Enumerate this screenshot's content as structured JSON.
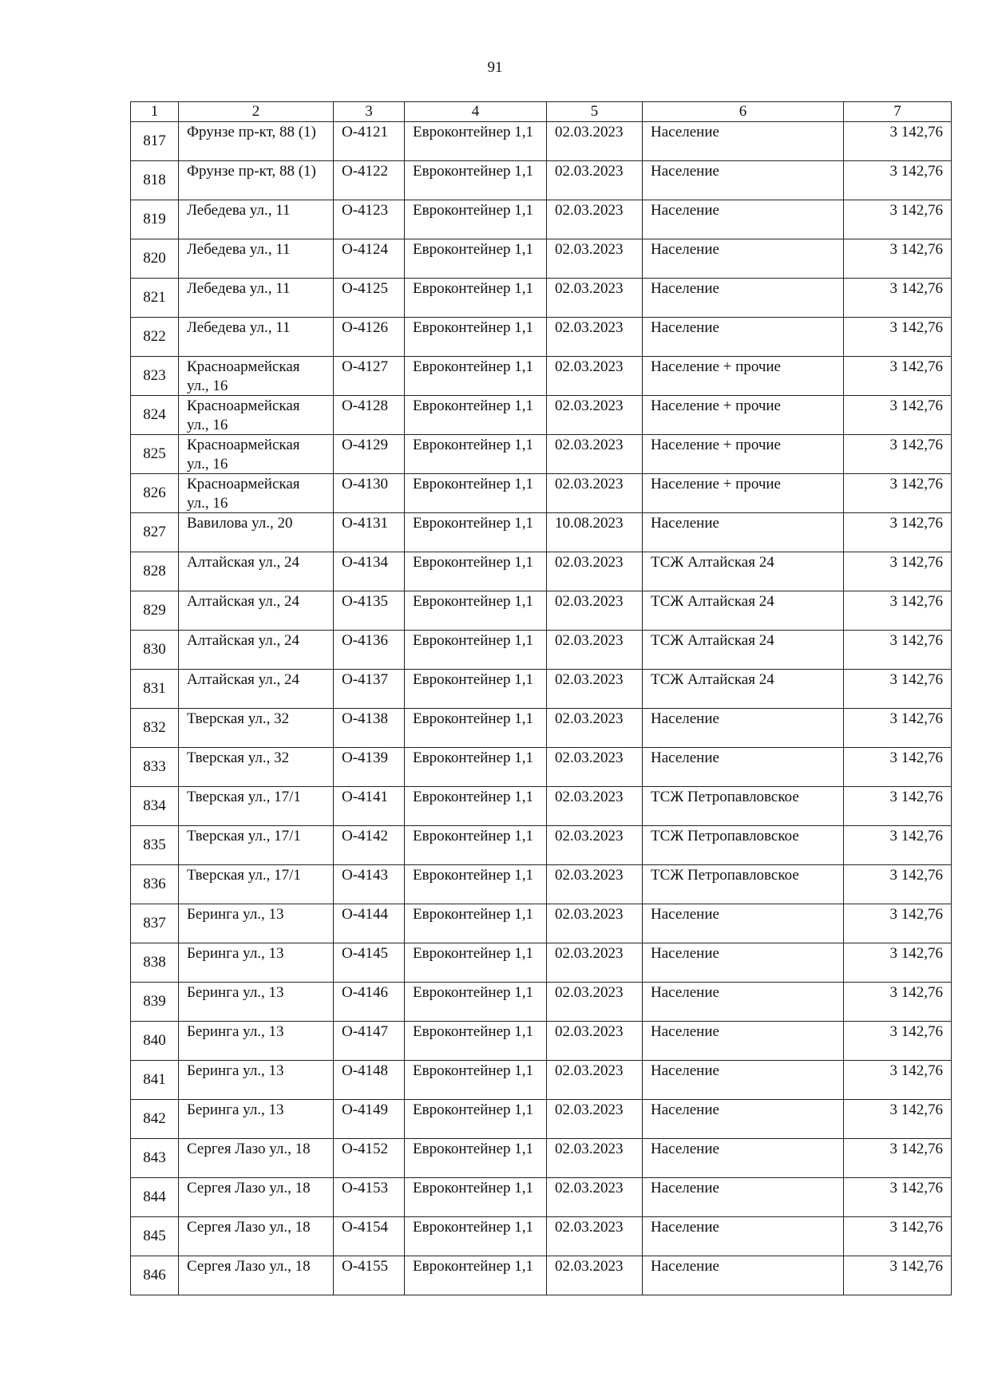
{
  "page_number": "91",
  "headers": [
    "1",
    "2",
    "3",
    "4",
    "5",
    "6",
    "7"
  ],
  "rows": [
    [
      "817",
      "Фрунзе пр-кт, 88 (1)",
      "О-4121",
      "Евроконтейнер 1,1",
      "02.03.2023",
      "Население",
      "3 142,76"
    ],
    [
      "818",
      "Фрунзе пр-кт, 88 (1)",
      "О-4122",
      "Евроконтейнер 1,1",
      "02.03.2023",
      "Население",
      "3 142,76"
    ],
    [
      "819",
      "Лебедева ул., 11",
      "О-4123",
      "Евроконтейнер 1,1",
      "02.03.2023",
      "Население",
      "3 142,76"
    ],
    [
      "820",
      "Лебедева ул., 11",
      "О-4124",
      "Евроконтейнер 1,1",
      "02.03.2023",
      "Население",
      "3 142,76"
    ],
    [
      "821",
      "Лебедева ул., 11",
      "О-4125",
      "Евроконтейнер 1,1",
      "02.03.2023",
      "Население",
      "3 142,76"
    ],
    [
      "822",
      "Лебедева ул., 11",
      "О-4126",
      "Евроконтейнер 1,1",
      "02.03.2023",
      "Население",
      "3 142,76"
    ],
    [
      "823",
      "Красноармейская ул., 16",
      "О-4127",
      "Евроконтейнер 1,1",
      "02.03.2023",
      "Население + прочие",
      "3 142,76"
    ],
    [
      "824",
      "Красноармейская ул., 16",
      "О-4128",
      "Евроконтейнер 1,1",
      "02.03.2023",
      "Население + прочие",
      "3 142,76"
    ],
    [
      "825",
      "Красноармейская ул., 16",
      "О-4129",
      "Евроконтейнер 1,1",
      "02.03.2023",
      "Население + прочие",
      "3 142,76"
    ],
    [
      "826",
      "Красноармейская ул., 16",
      "О-4130",
      "Евроконтейнер 1,1",
      "02.03.2023",
      "Население + прочие",
      "3 142,76"
    ],
    [
      "827",
      "Вавилова ул., 20",
      "О-4131",
      "Евроконтейнер 1,1",
      "10.08.2023",
      "Население",
      "3 142,76"
    ],
    [
      "828",
      "Алтайская ул., 24",
      "О-4134",
      "Евроконтейнер 1,1",
      "02.03.2023",
      "ТСЖ Алтайская 24",
      "3 142,76"
    ],
    [
      "829",
      "Алтайская ул., 24",
      "О-4135",
      "Евроконтейнер 1,1",
      "02.03.2023",
      "ТСЖ Алтайская 24",
      "3 142,76"
    ],
    [
      "830",
      "Алтайская ул., 24",
      "О-4136",
      "Евроконтейнер 1,1",
      "02.03.2023",
      "ТСЖ Алтайская 24",
      "3 142,76"
    ],
    [
      "831",
      "Алтайская ул., 24",
      "О-4137",
      "Евроконтейнер 1,1",
      "02.03.2023",
      "ТСЖ Алтайская 24",
      "3 142,76"
    ],
    [
      "832",
      "Тверская ул., 32",
      "О-4138",
      "Евроконтейнер 1,1",
      "02.03.2023",
      "Население",
      "3 142,76"
    ],
    [
      "833",
      "Тверская ул., 32",
      "О-4139",
      "Евроконтейнер 1,1",
      "02.03.2023",
      "Население",
      "3 142,76"
    ],
    [
      "834",
      "Тверская ул., 17/1",
      "О-4141",
      "Евроконтейнер 1,1",
      "02.03.2023",
      "ТСЖ Петропавловское",
      "3 142,76"
    ],
    [
      "835",
      "Тверская ул., 17/1",
      "О-4142",
      "Евроконтейнер 1,1",
      "02.03.2023",
      "ТСЖ Петропавловское",
      "3 142,76"
    ],
    [
      "836",
      "Тверская ул., 17/1",
      "О-4143",
      "Евроконтейнер 1,1",
      "02.03.2023",
      "ТСЖ Петропавловское",
      "3 142,76"
    ],
    [
      "837",
      "Беринга ул., 13",
      "О-4144",
      "Евроконтейнер 1,1",
      "02.03.2023",
      "Население",
      "3 142,76"
    ],
    [
      "838",
      "Беринга ул., 13",
      "О-4145",
      "Евроконтейнер 1,1",
      "02.03.2023",
      "Население",
      "3 142,76"
    ],
    [
      "839",
      "Беринга ул., 13",
      "О-4146",
      "Евроконтейнер 1,1",
      "02.03.2023",
      "Население",
      "3 142,76"
    ],
    [
      "840",
      "Беринга ул., 13",
      "О-4147",
      "Евроконтейнер 1,1",
      "02.03.2023",
      "Население",
      "3 142,76"
    ],
    [
      "841",
      "Беринга ул., 13",
      "О-4148",
      "Евроконтейнер 1,1",
      "02.03.2023",
      "Население",
      "3 142,76"
    ],
    [
      "842",
      "Беринга ул., 13",
      "О-4149",
      "Евроконтейнер 1,1",
      "02.03.2023",
      "Население",
      "3 142,76"
    ],
    [
      "843",
      "Сергея Лазо ул., 18",
      "О-4152",
      "Евроконтейнер 1,1",
      "02.03.2023",
      "Население",
      "3 142,76"
    ],
    [
      "844",
      "Сергея Лазо ул., 18",
      "О-4153",
      "Евроконтейнер 1,1",
      "02.03.2023",
      "Население",
      "3 142,76"
    ],
    [
      "845",
      "Сергея Лазо ул., 18",
      "О-4154",
      "Евроконтейнер 1,1",
      "02.03.2023",
      "Население",
      "3 142,76"
    ],
    [
      "846",
      "Сергея Лазо ул., 18",
      "О-4155",
      "Евроконтейнер 1,1",
      "02.03.2023",
      "Население",
      "3 142,76"
    ]
  ]
}
